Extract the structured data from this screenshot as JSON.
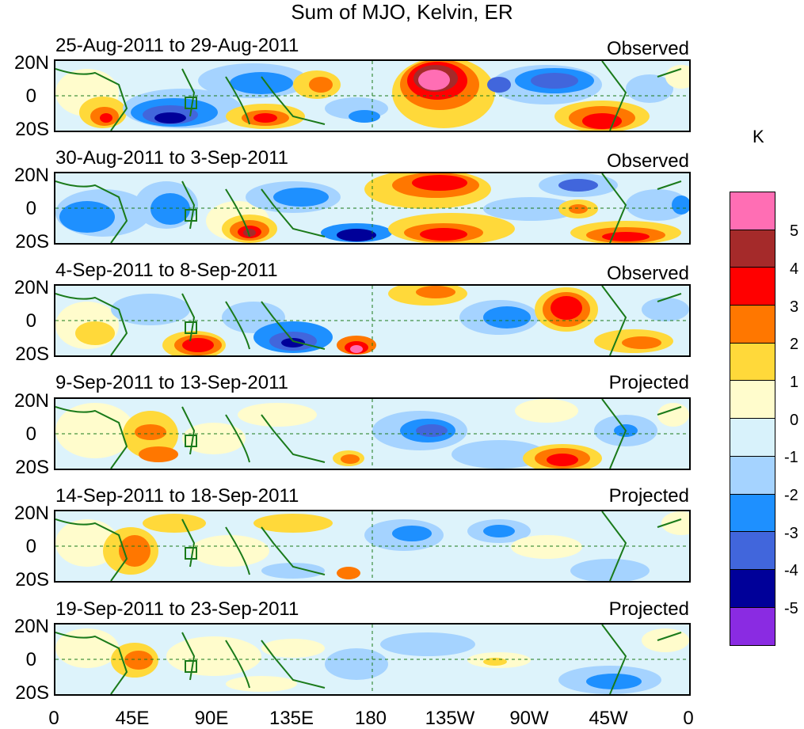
{
  "title": "Sum of MJO, Kelvin, ER",
  "panels": [
    {
      "dates": "25-Aug-2011 to 29-Aug-2011",
      "label": "Observed"
    },
    {
      "dates": "30-Aug-2011 to 3-Sep-2011",
      "label": "Observed"
    },
    {
      "dates": "4-Sep-2011 to 8-Sep-2011",
      "label": "Observed"
    },
    {
      "dates": "9-Sep-2011 to 13-Sep-2011",
      "label": "Projected"
    },
    {
      "dates": "14-Sep-2011 to 18-Sep-2011",
      "label": "Projected"
    },
    {
      "dates": "19-Sep-2011 to 23-Sep-2011",
      "label": "Projected"
    }
  ],
  "y_ticks": [
    "20N",
    "0",
    "20S"
  ],
  "x_ticks": [
    "0",
    "45E",
    "90E",
    "135E",
    "180",
    "135W",
    "90W",
    "45W",
    "0"
  ],
  "colorbar": {
    "unit": "K",
    "labels": [
      "5",
      "4",
      "3",
      "2",
      "1",
      "0",
      "-1",
      "-2",
      "-3",
      "-4",
      "-5"
    ],
    "colors": [
      "#ff6eb4",
      "#a52a2a",
      "#ff0000",
      "#ff7700",
      "#ffd93a",
      "#fffccc",
      "#d8f2fb",
      "#a5d3ff",
      "#1e90ff",
      "#4166dc",
      "#000099",
      "#8a2be2"
    ]
  }
}
